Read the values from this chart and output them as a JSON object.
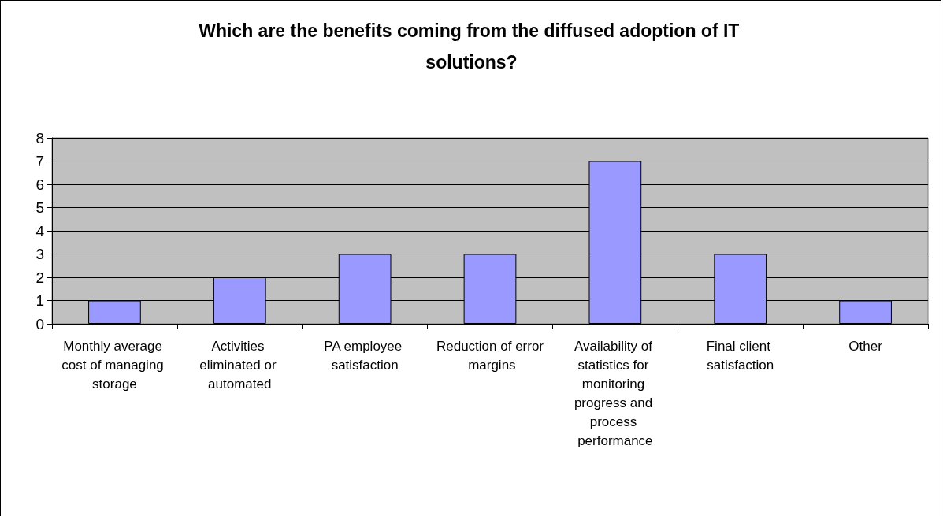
{
  "chart_data": {
    "type": "bar",
    "title": "Which are the benefits coming from the diffused adoption of IT solutions?",
    "categories": [
      "Monthly average cost of managing storage",
      "Activities eliminated or automated",
      "PA employee satisfaction",
      "Reduction of error margins",
      "Availability of statistics for monitoring progress and process performance",
      "Final client satisfaction",
      "Other"
    ],
    "values": [
      1,
      2,
      3,
      3,
      7,
      3,
      1
    ],
    "color": "#9999ff",
    "ylim": [
      0,
      8
    ],
    "yticks": [
      0,
      1,
      2,
      3,
      4,
      5,
      6,
      7,
      8
    ],
    "grid": "y"
  }
}
